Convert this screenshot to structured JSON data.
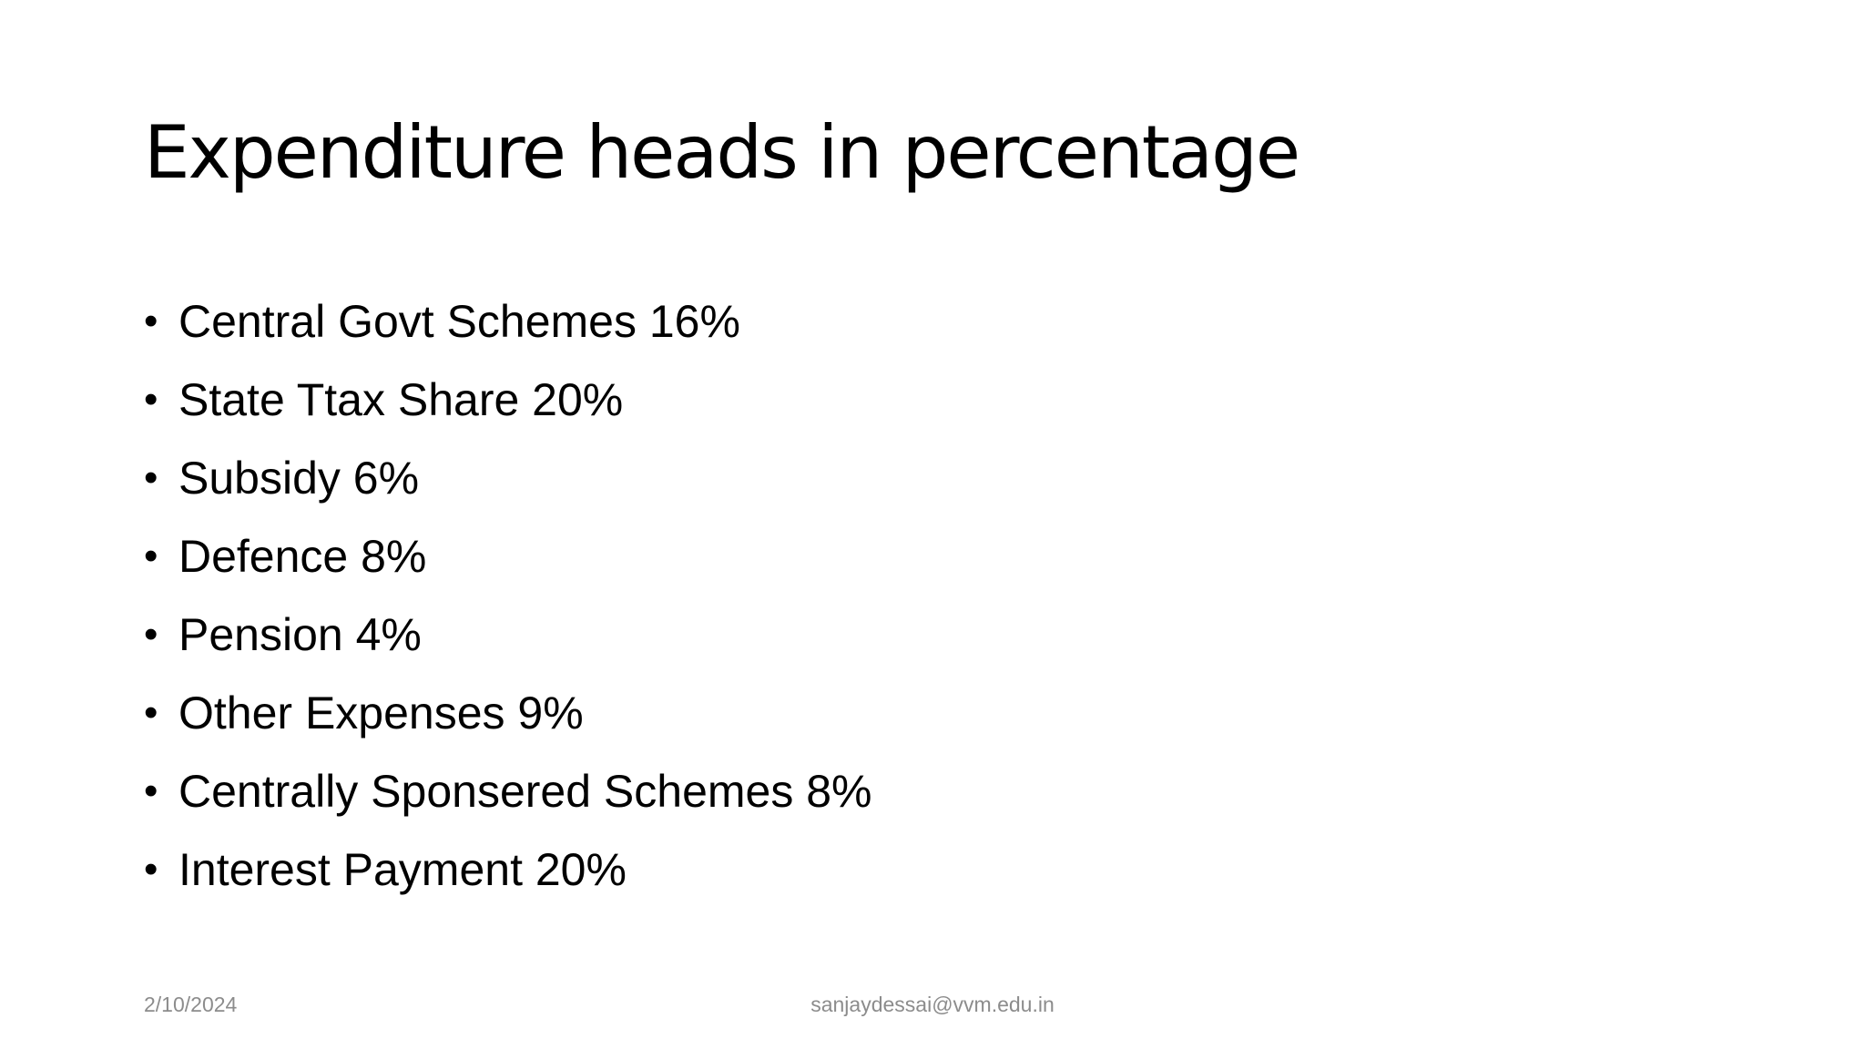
{
  "slide": {
    "title": "Expenditure heads in percentage",
    "bullet_glyph": "•",
    "bullets": [
      "Central Govt Schemes 16%",
      "State Ttax Share 20%",
      "Subsidy 6%",
      "Defence 8%",
      "Pension 4%",
      "Other Expenses 9%",
      "Centrally Sponsered Schemes 8%",
      "Interest Payment 20%"
    ],
    "footer": {
      "date": "2/10/2024",
      "email": "sanjaydessai@vvm.edu.in"
    }
  },
  "colors": {
    "background": "#ffffff",
    "text": "#000000",
    "footer_text": "#8c8c8c"
  }
}
